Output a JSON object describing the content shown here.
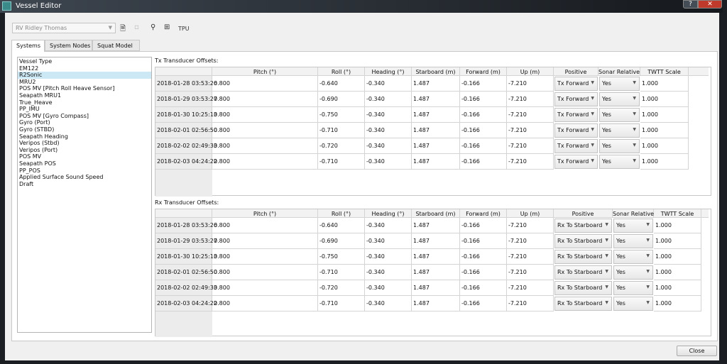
{
  "window": {
    "title": "Vessel Editor",
    "help": "?",
    "close": "✕"
  },
  "toolbar": {
    "vessel": "RV Ridley Thomas",
    "tpu": "TPU"
  },
  "tabs": [
    "Systems",
    "System Nodes",
    "Squat Model"
  ],
  "systems": [
    "Vessel Type",
    "EM122",
    "R2Sonic",
    "MRU2",
    "POS MV  [Pitch Roll Heave Sensor]",
    "Seapath MRU1",
    "True_Heave",
    "PP_IMU",
    "POS MV [Gyro Compass]",
    "Gyro (Port)",
    "Gyro (STBD)",
    "Seapath Heading",
    "Veripos (Stbd)",
    "Veripos (Port)",
    "POS MV",
    "Seapath POS",
    "PP_POS",
    "Applied Surface Sound Speed",
    "Draft"
  ],
  "selected_system": "R2Sonic",
  "columns": [
    "Pitch (°)",
    "Roll (°)",
    "Heading (°)",
    "Starboard (m)",
    "Forward (m)",
    "Up (m)",
    "Positive",
    "Sonar Relative",
    "TWTT Scale"
  ],
  "tx": {
    "label": "Tx Transducer Offsets:",
    "rows": [
      [
        "2018-01-28 03:53:26",
        "0.800",
        "-0.640",
        "-0.340",
        "1.487",
        "-0.166",
        "-7.210",
        "Tx Forward",
        "Yes",
        "1.000"
      ],
      [
        "2018-01-29 03:53:27",
        "0.800",
        "-0.690",
        "-0.340",
        "1.487",
        "-0.166",
        "-7.210",
        "Tx Forward",
        "Yes",
        "1.000"
      ],
      [
        "2018-01-30 10:25:13",
        "0.800",
        "-0.750",
        "-0.340",
        "1.487",
        "-0.166",
        "-7.210",
        "Tx Forward",
        "Yes",
        "1.000"
      ],
      [
        "2018-02-01 02:56:50",
        "0.800",
        "-0.710",
        "-0.340",
        "1.487",
        "-0.166",
        "-7.210",
        "Tx Forward",
        "Yes",
        "1.000"
      ],
      [
        "2018-02-02 02:49:33",
        "0.800",
        "-0.720",
        "-0.340",
        "1.487",
        "-0.166",
        "-7.210",
        "Tx Forward",
        "Yes",
        "1.000"
      ],
      [
        "2018-02-03 04:24:22",
        "0.800",
        "-0.710",
        "-0.340",
        "1.487",
        "-0.166",
        "-7.210",
        "Tx Forward",
        "Yes",
        "1.000"
      ]
    ]
  },
  "rx": {
    "label": "Rx Transducer Offsets:",
    "rows": [
      [
        "2018-01-28 03:53:26",
        "0.800",
        "-0.640",
        "-0.340",
        "1.487",
        "-0.166",
        "-7.210",
        "Rx To Starboard",
        "Yes",
        "1.000"
      ],
      [
        "2018-01-29 03:53:27",
        "0.800",
        "-0.690",
        "-0.340",
        "1.487",
        "-0.166",
        "-7.210",
        "Rx To Starboard",
        "Yes",
        "1.000"
      ],
      [
        "2018-01-30 10:25:13",
        "0.800",
        "-0.750",
        "-0.340",
        "1.487",
        "-0.166",
        "-7.210",
        "Rx To Starboard",
        "Yes",
        "1.000"
      ],
      [
        "2018-02-01 02:56:50",
        "0.800",
        "-0.710",
        "-0.340",
        "1.487",
        "-0.166",
        "-7.210",
        "Rx To Starboard",
        "Yes",
        "1.000"
      ],
      [
        "2018-02-02 02:49:33",
        "0.800",
        "-0.720",
        "-0.340",
        "1.487",
        "-0.166",
        "-7.210",
        "Rx To Starboard",
        "Yes",
        "1.000"
      ],
      [
        "2018-02-03 04:24:22",
        "0.800",
        "-0.710",
        "-0.340",
        "1.487",
        "-0.166",
        "-7.210",
        "Rx To Starboard",
        "Yes",
        "1.000"
      ]
    ]
  },
  "footer": {
    "close": "Close"
  }
}
